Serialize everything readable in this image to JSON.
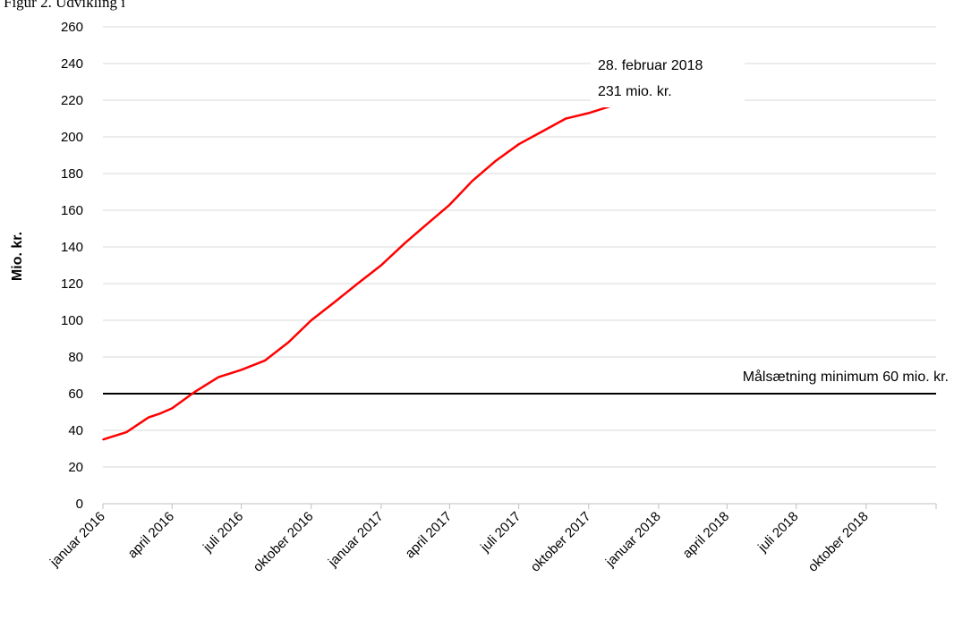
{
  "caption": "Figur 2. Udvikling i",
  "chart_data": {
    "type": "line",
    "title": "",
    "xlabel": "",
    "ylabel": "Mio. kr.",
    "ylim": [
      0,
      260
    ],
    "yticks": [
      0,
      20,
      40,
      60,
      80,
      100,
      120,
      140,
      160,
      180,
      200,
      220,
      240,
      260
    ],
    "xlim": [
      "2016-01",
      "2019-01"
    ],
    "xticks": [
      "januar 2016",
      "april 2016",
      "juli 2016",
      "oktober 2016",
      "januar 2017",
      "april 2017",
      "juli 2017",
      "oktober 2017",
      "januar 2018",
      "april 2018",
      "juli 2018",
      "oktober 2018"
    ],
    "grid": true,
    "line_color": "#ff0000",
    "target_color": "#000000",
    "series": [
      {
        "x": [
          "2016-01-01",
          "2016-02-01",
          "2016-03-01",
          "2016-03-15",
          "2016-04-01",
          "2016-05-01",
          "2016-06-01",
          "2016-07-01",
          "2016-08-01",
          "2016-09-01",
          "2016-10-01",
          "2016-11-01",
          "2016-12-01",
          "2017-01-01",
          "2017-02-01",
          "2017-03-01",
          "2017-04-01",
          "2017-05-01",
          "2017-06-01",
          "2017-07-01",
          "2017-08-01",
          "2017-09-01",
          "2017-10-01",
          "2017-11-01",
          "2017-12-01",
          "2018-01-01",
          "2018-02-01",
          "2018-02-28"
        ],
        "values": [
          35,
          39,
          47,
          49,
          52,
          61,
          69,
          73,
          78,
          88,
          100,
          110,
          120,
          130,
          142,
          152,
          163,
          176,
          187,
          196,
          203,
          210,
          213,
          217,
          221,
          225,
          228,
          231
        ]
      }
    ],
    "reference_line": {
      "value": 60,
      "label": "Målsætning minimum 60 mio. kr."
    },
    "annotations": [
      {
        "line1": "28. februar 2018",
        "line2": "231 mio. kr."
      }
    ]
  }
}
